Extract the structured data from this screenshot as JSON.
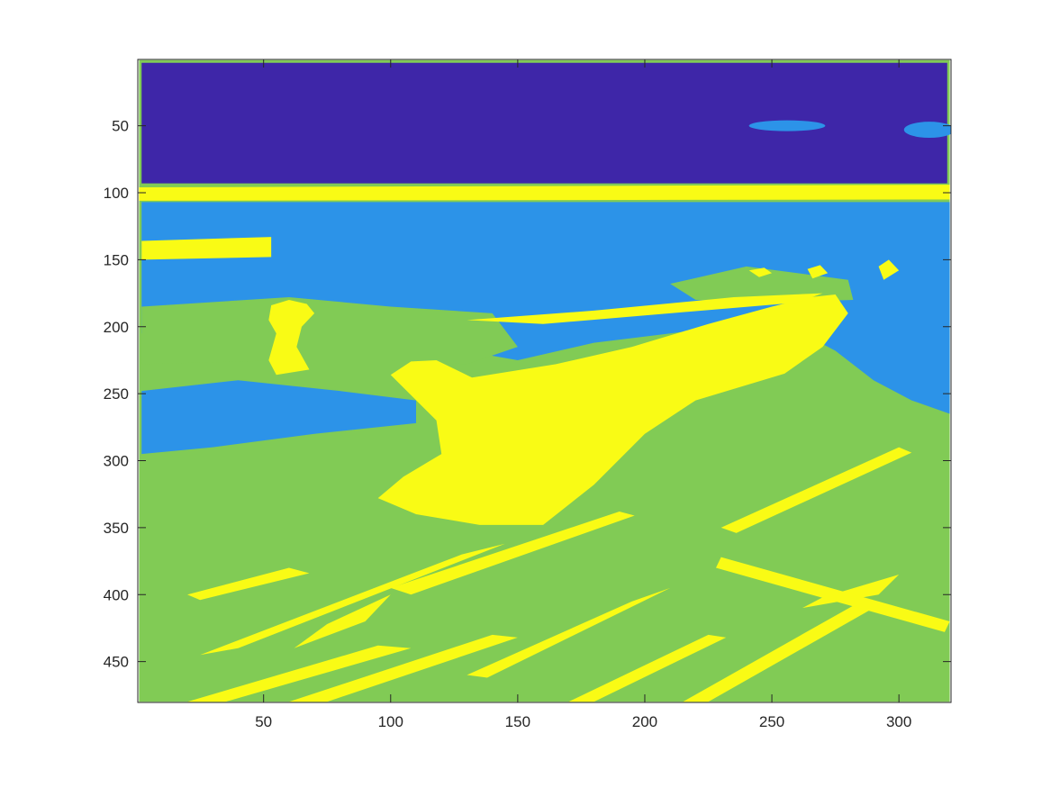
{
  "chart_data": {
    "type": "heatmap",
    "title": "",
    "xlabel": "",
    "ylabel": "",
    "xlim": [
      0.5,
      320.5
    ],
    "ylim": [
      0.5,
      480.5
    ],
    "y_reversed": true,
    "grid": false,
    "legend": "none",
    "x_ticks": [
      50,
      100,
      150,
      200,
      250,
      300
    ],
    "x_tick_labels": [
      "50",
      "100",
      "150",
      "200",
      "250",
      "300"
    ],
    "y_ticks": [
      50,
      100,
      150,
      200,
      250,
      300,
      350,
      400,
      450
    ],
    "y_tick_labels": [
      "50",
      "100",
      "150",
      "200",
      "250",
      "300",
      "350",
      "400",
      "450"
    ],
    "colormap": "parula",
    "classes": [
      {
        "level": 1,
        "color": "#3e26a8"
      },
      {
        "level": 2,
        "color": "#2c93e8"
      },
      {
        "level": 3,
        "color": "#81cb55"
      },
      {
        "level": 4,
        "color": "#f9fb15"
      }
    ],
    "regions": [
      {
        "level": 3,
        "shape": "polygon",
        "points": [
          [
            1,
            1
          ],
          [
            320,
            1
          ],
          [
            320,
            480
          ],
          [
            1,
            480
          ]
        ]
      },
      {
        "level": 1,
        "shape": "polygon",
        "points": [
          [
            2,
            3
          ],
          [
            319,
            3
          ],
          [
            319,
            93
          ],
          [
            2,
            93
          ]
        ]
      },
      {
        "level": 2,
        "shape": "ellipse",
        "center": [
          256,
          50
        ],
        "radii": [
          15,
          4
        ]
      },
      {
        "level": 2,
        "shape": "ellipse",
        "center": [
          312,
          53
        ],
        "radii": [
          10,
          6
        ]
      },
      {
        "level": 4,
        "shape": "polygon",
        "points": [
          [
            1,
            96
          ],
          [
            320,
            94
          ],
          [
            320,
            105
          ],
          [
            1,
            106
          ]
        ]
      },
      {
        "level": 2,
        "shape": "polygon",
        "points": [
          [
            2,
            107
          ],
          [
            320,
            107
          ],
          [
            320,
            265
          ],
          [
            305,
            255
          ],
          [
            290,
            240
          ],
          [
            275,
            218
          ],
          [
            262,
            205
          ],
          [
            240,
            198
          ],
          [
            210,
            205
          ],
          [
            180,
            212
          ],
          [
            150,
            225
          ],
          [
            120,
            215
          ],
          [
            95,
            205
          ],
          [
            60,
            200
          ],
          [
            30,
            200
          ],
          [
            2,
            205
          ]
        ]
      },
      {
        "level": 2,
        "shape": "polygon",
        "points": [
          [
            2,
            248
          ],
          [
            40,
            240
          ],
          [
            80,
            248
          ],
          [
            110,
            255
          ],
          [
            110,
            272
          ],
          [
            70,
            280
          ],
          [
            30,
            290
          ],
          [
            2,
            295
          ]
        ]
      },
      {
        "level": 3,
        "shape": "polygon",
        "points": [
          [
            2,
            185
          ],
          [
            60,
            178
          ],
          [
            100,
            185
          ],
          [
            140,
            190
          ],
          [
            150,
            215
          ],
          [
            130,
            228
          ],
          [
            100,
            225
          ],
          [
            60,
            225
          ],
          [
            2,
            228
          ]
        ]
      },
      {
        "level": 4,
        "shape": "polygon",
        "points": [
          [
            2,
            136
          ],
          [
            53,
            133
          ],
          [
            53,
            148
          ],
          [
            2,
            150
          ]
        ]
      },
      {
        "level": 3,
        "shape": "polygon",
        "points": [
          [
            210,
            168
          ],
          [
            240,
            155
          ],
          [
            280,
            165
          ],
          [
            282,
            180
          ],
          [
            250,
            182
          ],
          [
            220,
            180
          ]
        ]
      },
      {
        "level": 4,
        "shape": "polygon",
        "points": [
          [
            53,
            184
          ],
          [
            60,
            180
          ],
          [
            67,
            183
          ],
          [
            70,
            190
          ],
          [
            65,
            200
          ],
          [
            63,
            215
          ],
          [
            68,
            232
          ],
          [
            55,
            236
          ],
          [
            52,
            225
          ],
          [
            55,
            205
          ],
          [
            52,
            195
          ]
        ]
      },
      {
        "level": 4,
        "shape": "polygon",
        "points": [
          [
            100,
            236
          ],
          [
            108,
            226
          ],
          [
            118,
            225
          ],
          [
            132,
            238
          ],
          [
            165,
            228
          ],
          [
            195,
            215
          ],
          [
            225,
            198
          ],
          [
            250,
            185
          ],
          [
            265,
            178
          ],
          [
            275,
            176
          ],
          [
            280,
            190
          ],
          [
            270,
            215
          ],
          [
            255,
            235
          ],
          [
            220,
            255
          ],
          [
            200,
            280
          ],
          [
            180,
            318
          ],
          [
            160,
            348
          ],
          [
            135,
            348
          ],
          [
            110,
            340
          ],
          [
            95,
            328
          ],
          [
            105,
            312
          ],
          [
            120,
            295
          ],
          [
            118,
            270
          ]
        ]
      },
      {
        "level": 4,
        "shape": "polygon",
        "points": [
          [
            130,
            195
          ],
          [
            180,
            188
          ],
          [
            235,
            178
          ],
          [
            270,
            175
          ],
          [
            260,
            182
          ],
          [
            210,
            190
          ],
          [
            160,
            198
          ]
        ]
      },
      {
        "level": 4,
        "shape": "polygon",
        "points": [
          [
            241,
            158
          ],
          [
            247,
            156
          ],
          [
            250,
            160
          ],
          [
            245,
            163
          ]
        ]
      },
      {
        "level": 4,
        "shape": "polygon",
        "points": [
          [
            264,
            157
          ],
          [
            269,
            154
          ],
          [
            272,
            160
          ],
          [
            266,
            164
          ]
        ]
      },
      {
        "level": 4,
        "shape": "polygon",
        "points": [
          [
            292,
            155
          ],
          [
            296,
            150
          ],
          [
            300,
            158
          ],
          [
            294,
            165
          ]
        ]
      },
      {
        "level": 4,
        "shape": "polygon",
        "points": [
          [
            128,
            370
          ],
          [
            145,
            362
          ],
          [
            40,
            440
          ],
          [
            25,
            445
          ]
        ]
      },
      {
        "level": 4,
        "shape": "polygon",
        "points": [
          [
            100,
            395
          ],
          [
            190,
            338
          ],
          [
            196,
            341
          ],
          [
            108,
            400
          ]
        ]
      },
      {
        "level": 4,
        "shape": "polygon",
        "points": [
          [
            62,
            440
          ],
          [
            90,
            420
          ],
          [
            100,
            400
          ],
          [
            75,
            422
          ]
        ]
      },
      {
        "level": 4,
        "shape": "polygon",
        "points": [
          [
            130,
            460
          ],
          [
            195,
            405
          ],
          [
            210,
            395
          ],
          [
            138,
            462
          ]
        ]
      },
      {
        "level": 4,
        "shape": "polygon",
        "points": [
          [
            215,
            480
          ],
          [
            285,
            405
          ],
          [
            290,
            410
          ],
          [
            225,
            480
          ]
        ]
      },
      {
        "level": 4,
        "shape": "polygon",
        "points": [
          [
            262,
            410
          ],
          [
            270,
            402
          ],
          [
            300,
            385
          ],
          [
            292,
            400
          ]
        ]
      },
      {
        "level": 4,
        "shape": "polygon",
        "points": [
          [
            230,
            372
          ],
          [
            320,
            420
          ],
          [
            318,
            428
          ],
          [
            228,
            380
          ]
        ]
      },
      {
        "level": 4,
        "shape": "polygon",
        "points": [
          [
            20,
            480
          ],
          [
            95,
            438
          ],
          [
            108,
            440
          ],
          [
            35,
            480
          ]
        ]
      },
      {
        "level": 4,
        "shape": "polygon",
        "points": [
          [
            60,
            480
          ],
          [
            140,
            430
          ],
          [
            150,
            432
          ],
          [
            75,
            480
          ]
        ]
      },
      {
        "level": 4,
        "shape": "polygon",
        "points": [
          [
            170,
            480
          ],
          [
            225,
            430
          ],
          [
            232,
            432
          ],
          [
            180,
            480
          ]
        ]
      },
      {
        "level": 4,
        "shape": "polygon",
        "points": [
          [
            20,
            400
          ],
          [
            60,
            380
          ],
          [
            68,
            384
          ],
          [
            25,
            404
          ]
        ]
      },
      {
        "level": 4,
        "shape": "polygon",
        "points": [
          [
            230,
            350
          ],
          [
            300,
            290
          ],
          [
            305,
            294
          ],
          [
            236,
            354
          ]
        ]
      }
    ]
  }
}
